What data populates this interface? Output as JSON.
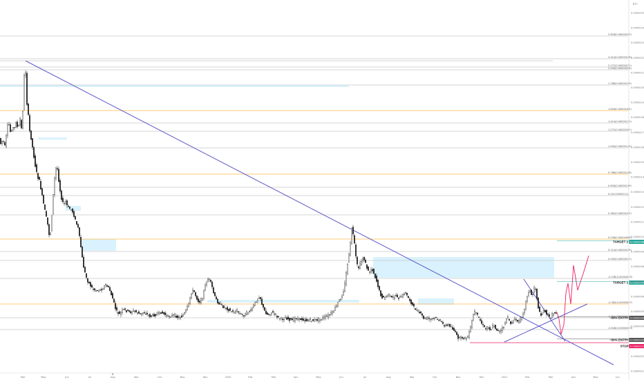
{
  "chart_data": {
    "type": "candlestick",
    "xaxis": {
      "ticks": [
        "Mar",
        "May",
        "Jun",
        "Jul",
        "Aug",
        "Sep",
        "Oct",
        "Nov",
        "Dec",
        "2020",
        "Feb",
        "Mar",
        "Apr",
        "May",
        "Jun",
        "Jul",
        "Aug",
        "Sep",
        "Oct",
        "Nov",
        "Dec",
        "2021",
        "Feb",
        "Mar",
        "Apr",
        "May",
        "Jun"
      ]
    },
    "yaxis": {
      "unit": "BTC",
      "ticks": [
        "0.00000250",
        "0.00000240",
        "0.00000230",
        "0.00000220",
        "0.00000210",
        "0.00000200",
        "0.00000190",
        "0.00000180",
        "0.00000170",
        "0.00000160",
        "0.00000150",
        "0.00000140",
        "0.00000130",
        "0.00000120",
        "0.00000110",
        "0.00000100",
        "0.00000090",
        "0.00000080",
        "0.00000070",
        "0.00000060",
        "0.00000050",
        "0.00000040",
        "0.00000030",
        "0.00000020",
        "0.00000010"
      ],
      "top_label": "BTC"
    },
    "fib_levels": [
      {
        "label": "2.618(0.00000253)",
        "color": "#c8c8c8"
      },
      {
        "label": "2.414(0.00000236)",
        "color": "#c8c8c8"
      },
      {
        "label": "2.272(0.00000231)",
        "color": "#c8c8c8"
      },
      {
        "label": "2.000(0.00000208)",
        "color": "#c8c8c8"
      },
      {
        "label": "1.786(0.00000195)",
        "color": "#c8c8c8"
      },
      {
        "label": "1.618(0.00000184)",
        "color": "#ffb74d"
      },
      {
        "label": "1.414(0.00000171)",
        "color": "#c8c8c8"
      },
      {
        "label": "1.272(0.00000161)",
        "color": "#c8c8c8"
      },
      {
        "label": "1.000(0.00000145)",
        "color": "#c8c8c8"
      },
      {
        "label": "0.786(0.00000128)",
        "color": "#ffb74d"
      },
      {
        "label": "0.618(0.00000119)",
        "color": "#c8c8c8"
      },
      {
        "label": "0.5(0.00000111)",
        "color": "#c8c8c8"
      },
      {
        "label": "0.382(0.00000102)",
        "color": "#c8c8c8"
      },
      {
        "label": "0.236(0.00000088)",
        "color": "#ffb74d"
      },
      {
        "label": "0.114(0.00000079)",
        "color": "#c8c8c8"
      },
      {
        "label": "0.000(0.00000071)",
        "color": "#c8c8c8"
      },
      {
        "label": "-0.236(0.00000055)",
        "color": "#c8c8c8"
      },
      {
        "label": "-0.382(0.00000047)",
        "color": "#ffb74d"
      },
      {
        "label": "-0.5(0.00000040)",
        "color": "#c8c8c8"
      },
      {
        "label": "-0.618(0.00000033)",
        "color": "#c8c8c8"
      }
    ],
    "annotations": [
      {
        "text": "TARGET 2",
        "tag": "0.00000088",
        "tag_color": "#26a69a"
      },
      {
        "text": "TARGET 1",
        "tag": "0.00000055",
        "tag_color": "#26a69a"
      },
      {
        "text": "~50% ENTRY",
        "tag": "0.00000040",
        "tag_color": "#555555"
      },
      {
        "text": "~50% ENTRY",
        "tag": "0.00000025",
        "tag_color": "#555555"
      },
      {
        "text": "STOP",
        "tag": "0.00000021",
        "tag_color": "#e91e63"
      }
    ],
    "price_path": [
      [
        0,
        196
      ],
      [
        3,
        208
      ],
      [
        6,
        202
      ],
      [
        9,
        212
      ],
      [
        12,
        190
      ],
      [
        14,
        175
      ],
      [
        16,
        186
      ],
      [
        18,
        195
      ],
      [
        20,
        180
      ],
      [
        22,
        190
      ],
      [
        25,
        176
      ],
      [
        28,
        188
      ],
      [
        31,
        172
      ],
      [
        33,
        186
      ],
      [
        35,
        160
      ],
      [
        37,
        110
      ],
      [
        38,
        88
      ],
      [
        40,
        120
      ],
      [
        41,
        150
      ],
      [
        43,
        168
      ],
      [
        45,
        190
      ],
      [
        47,
        200
      ],
      [
        50,
        220
      ],
      [
        53,
        240
      ],
      [
        56,
        255
      ],
      [
        59,
        262
      ],
      [
        62,
        278
      ],
      [
        64,
        290
      ],
      [
        66,
        300
      ],
      [
        68,
        310
      ],
      [
        70,
        320
      ],
      [
        72,
        330
      ],
      [
        74,
        348
      ],
      [
        76,
        325
      ],
      [
        78,
        296
      ],
      [
        80,
        268
      ],
      [
        82,
        248
      ],
      [
        84,
        238
      ],
      [
        86,
        252
      ],
      [
        88,
        270
      ],
      [
        90,
        282
      ],
      [
        92,
        292
      ],
      [
        94,
        296
      ],
      [
        97,
        292
      ],
      [
        100,
        300
      ],
      [
        103,
        302
      ],
      [
        106,
        304
      ],
      [
        109,
        312
      ],
      [
        112,
        322
      ],
      [
        115,
        330
      ],
      [
        118,
        350
      ],
      [
        120,
        365
      ],
      [
        122,
        382
      ],
      [
        125,
        395
      ],
      [
        128,
        405
      ],
      [
        132,
        412
      ],
      [
        136,
        418
      ],
      [
        140,
        420
      ],
      [
        145,
        420
      ],
      [
        150,
        418
      ],
      [
        155,
        412
      ],
      [
        160,
        418
      ],
      [
        165,
        432
      ],
      [
        170,
        450
      ],
      [
        175,
        455
      ],
      [
        180,
        448
      ],
      [
        185,
        450
      ],
      [
        190,
        452
      ],
      [
        195,
        450
      ],
      [
        200,
        452
      ],
      [
        205,
        455
      ],
      [
        210,
        452
      ],
      [
        215,
        455
      ],
      [
        220,
        458
      ],
      [
        225,
        456
      ],
      [
        230,
        455
      ],
      [
        235,
        452
      ],
      [
        240,
        455
      ],
      [
        245,
        458
      ],
      [
        250,
        457
      ],
      [
        255,
        456
      ],
      [
        260,
        460
      ],
      [
        265,
        458
      ],
      [
        270,
        452
      ],
      [
        275,
        440
      ],
      [
        278,
        425
      ],
      [
        282,
        420
      ],
      [
        286,
        430
      ],
      [
        290,
        438
      ],
      [
        295,
        430
      ],
      [
        300,
        410
      ],
      [
        304,
        402
      ],
      [
        308,
        412
      ],
      [
        312,
        428
      ],
      [
        316,
        436
      ],
      [
        320,
        440
      ],
      [
        325,
        444
      ],
      [
        330,
        446
      ],
      [
        335,
        450
      ],
      [
        340,
        452
      ],
      [
        345,
        450
      ],
      [
        350,
        455
      ],
      [
        355,
        456
      ],
      [
        360,
        452
      ],
      [
        365,
        450
      ],
      [
        370,
        440
      ],
      [
        375,
        432
      ],
      [
        378,
        428
      ],
      [
        382,
        444
      ],
      [
        386,
        452
      ],
      [
        390,
        456
      ],
      [
        395,
        452
      ],
      [
        400,
        455
      ],
      [
        405,
        460
      ],
      [
        410,
        462
      ],
      [
        415,
        460
      ],
      [
        420,
        462
      ],
      [
        425,
        464
      ],
      [
        430,
        460
      ],
      [
        435,
        462
      ],
      [
        440,
        462
      ],
      [
        445,
        464
      ],
      [
        450,
        463
      ],
      [
        455,
        464
      ],
      [
        460,
        463
      ],
      [
        465,
        462
      ],
      [
        470,
        460
      ],
      [
        475,
        458
      ],
      [
        480,
        455
      ],
      [
        485,
        450
      ],
      [
        490,
        440
      ],
      [
        495,
        432
      ],
      [
        500,
        418
      ],
      [
        504,
        388
      ],
      [
        508,
        362
      ],
      [
        511,
        330
      ],
      [
        514,
        345
      ],
      [
        517,
        372
      ],
      [
        520,
        390
      ],
      [
        524,
        380
      ],
      [
        528,
        372
      ],
      [
        532,
        385
      ],
      [
        536,
        395
      ],
      [
        540,
        388
      ],
      [
        544,
        398
      ],
      [
        548,
        410
      ],
      [
        552,
        425
      ],
      [
        556,
        432
      ],
      [
        560,
        430
      ],
      [
        564,
        425
      ],
      [
        568,
        432
      ],
      [
        572,
        430
      ],
      [
        576,
        428
      ],
      [
        580,
        432
      ],
      [
        584,
        430
      ],
      [
        588,
        422
      ],
      [
        592,
        430
      ],
      [
        596,
        436
      ],
      [
        600,
        444
      ],
      [
        604,
        448
      ],
      [
        608,
        452
      ],
      [
        612,
        456
      ],
      [
        616,
        462
      ],
      [
        620,
        460
      ],
      [
        624,
        462
      ],
      [
        628,
        462
      ],
      [
        632,
        460
      ],
      [
        636,
        462
      ],
      [
        640,
        466
      ],
      [
        644,
        470
      ],
      [
        648,
        472
      ],
      [
        652,
        470
      ],
      [
        656,
        474
      ],
      [
        660,
        480
      ],
      [
        664,
        488
      ],
      [
        668,
        490
      ],
      [
        672,
        488
      ],
      [
        676,
        490
      ],
      [
        680,
        486
      ],
      [
        684,
        470
      ],
      [
        688,
        450
      ],
      [
        692,
        455
      ],
      [
        696,
        462
      ],
      [
        700,
        470
      ],
      [
        704,
        476
      ],
      [
        708,
        472
      ],
      [
        712,
        478
      ],
      [
        716,
        470
      ],
      [
        720,
        476
      ],
      [
        724,
        480
      ],
      [
        728,
        478
      ],
      [
        732,
        470
      ],
      [
        736,
        458
      ],
      [
        740,
        468
      ],
      [
        744,
        466
      ],
      [
        748,
        462
      ],
      [
        752,
        466
      ],
      [
        756,
        460
      ],
      [
        760,
        450
      ],
      [
        764,
        432
      ],
      [
        768,
        418
      ],
      [
        772,
        430
      ],
      [
        776,
        412
      ],
      [
        778,
        424
      ],
      [
        782,
        452
      ],
      [
        786,
        456
      ],
      [
        790,
        448
      ],
      [
        794,
        456
      ],
      [
        798,
        460
      ],
      [
        802,
        454
      ],
      [
        806,
        452
      ]
    ],
    "projection_path": [
      [
        806,
        452
      ],
      [
        809,
        462
      ],
      [
        812,
        484
      ],
      [
        816,
        470
      ],
      [
        819,
        424
      ],
      [
        822,
        410
      ],
      [
        826,
        440
      ],
      [
        830,
        384
      ],
      [
        836,
        420
      ],
      [
        844,
        396
      ],
      [
        852,
        370
      ]
    ],
    "trendlines": [
      {
        "from": [
          37,
          88
        ],
        "to": [
          888,
          528
        ],
        "color": "#5c57c9"
      },
      {
        "from": [
          730,
          495
        ],
        "to": [
          850,
          440
        ],
        "color": "#5c57c9"
      },
      {
        "from": [
          758,
          404
        ],
        "to": [
          818,
          494
        ],
        "color": "#5c57c9"
      }
    ]
  }
}
